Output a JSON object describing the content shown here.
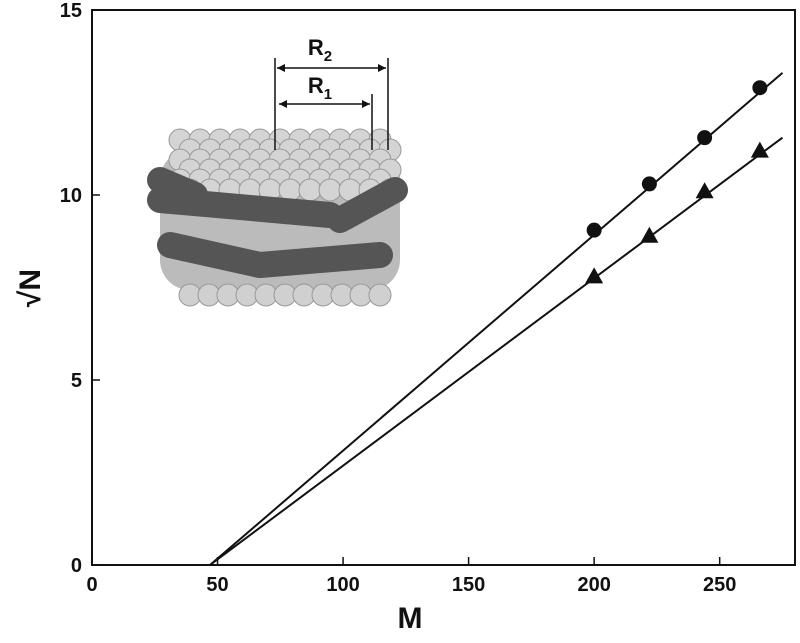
{
  "chart_data": {
    "type": "scatter",
    "xlabel": "M",
    "ylabel": "√N",
    "xlim": [
      0,
      280
    ],
    "ylim": [
      0,
      15
    ],
    "xticks": [
      0,
      50,
      100,
      150,
      200,
      250
    ],
    "yticks": [
      0,
      5,
      10,
      15
    ],
    "series": [
      {
        "marker": "circle",
        "color": "#111111",
        "x": [
          200,
          222,
          244,
          266
        ],
        "values": [
          9.05,
          10.3,
          11.55,
          12.9
        ]
      },
      {
        "marker": "triangle",
        "color": "#111111",
        "x": [
          200,
          222,
          244,
          266
        ],
        "values": [
          7.8,
          8.9,
          10.1,
          11.2
        ]
      },
      {
        "marker": "line",
        "color": "#111111",
        "x": [
          47,
          275
        ],
        "values": [
          0,
          13.3
        ]
      },
      {
        "marker": "line",
        "color": "#111111",
        "x": [
          47,
          275
        ],
        "values": [
          0,
          11.55
        ]
      }
    ],
    "inset": {
      "outer": {
        "base": "R",
        "sub": "2"
      },
      "inner": {
        "base": "R",
        "sub": "1"
      }
    }
  }
}
